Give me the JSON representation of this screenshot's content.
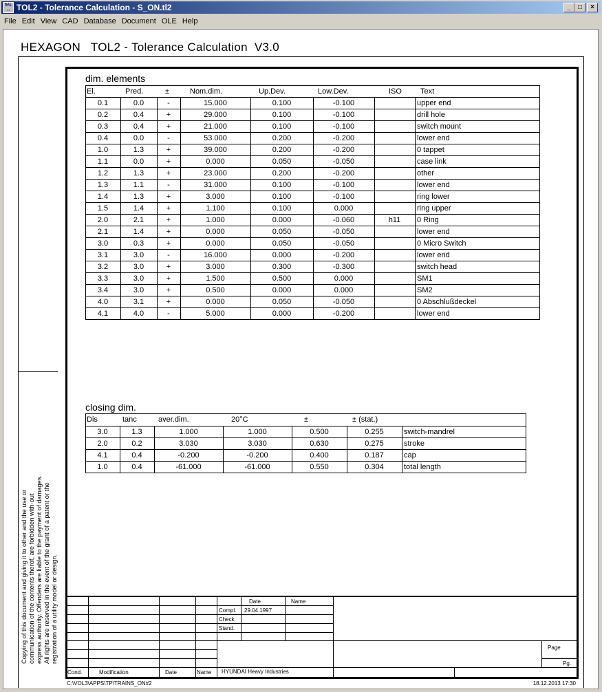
{
  "window": {
    "title": "TOL2 - Tolerance Calculation  - S_ON.tl2",
    "icon": "app-icon",
    "controls": [
      "minimize",
      "maximize",
      "close"
    ]
  },
  "menu": [
    "File",
    "Edit",
    "View",
    "CAD",
    "Database",
    "Document",
    "OLE",
    "Help"
  ],
  "document": {
    "heading": "HEXAGON   TOL2 - Tolerance Calculation  V3.0",
    "legal_text": "Copying of this document and giving it to other and the use or communication of the contents therof, are forbidden with-out express authority. Offenders are liable to the payment of damages. All rights are reserved in the event of the grant of a patent or the registration of a utility model or design."
  },
  "dim_elements": {
    "title": "dim. elements",
    "headers": [
      "El.",
      "Pred.",
      "±",
      "Nom.dim.",
      "Up.Dev.",
      "Low.Dev.",
      "ISO",
      "Text"
    ],
    "rows": [
      [
        "0.1",
        "0.0",
        "-",
        "15.000",
        "0.100",
        "-0.100",
        "",
        "upper end"
      ],
      [
        "0.2",
        "0.4",
        "+",
        "29.000",
        "0.100",
        "-0.100",
        "",
        "drill hole"
      ],
      [
        "0.3",
        "0.4",
        "+",
        "21.000",
        "0.100",
        "-0.100",
        "",
        "switch mount"
      ],
      [
        "0.4",
        "0.0",
        "-",
        "53.000",
        "0.200",
        "-0.200",
        "",
        "lower end"
      ],
      [
        "1.0",
        "1.3",
        "+",
        "39.000",
        "0.200",
        "-0.200",
        "",
        "0 tappet"
      ],
      [
        "1.1",
        "0.0",
        "+",
        "0.000",
        "0.050",
        "-0.050",
        "",
        "case link"
      ],
      [
        "1.2",
        "1.3",
        "+",
        "23.000",
        "0.200",
        "-0.200",
        "",
        "other"
      ],
      [
        "1.3",
        "1.1",
        "-",
        "31.000",
        "0.100",
        "-0.100",
        "",
        "lower end"
      ],
      [
        "1.4",
        "1.3",
        "+",
        "3.000",
        "0.100",
        "-0.100",
        "",
        "ring lower"
      ],
      [
        "1.5",
        "1.4",
        "+",
        "1.100",
        "0.100",
        "0.000",
        "",
        "ring upper"
      ],
      [
        "2.0",
        "2.1",
        "+",
        "1.000",
        "0.000",
        "-0.060",
        "h11",
        "0 Ring"
      ],
      [
        "2.1",
        "1.4",
        "+",
        "0.000",
        "0.050",
        "-0.050",
        "",
        "lower end"
      ],
      [
        "3.0",
        "0.3",
        "+",
        "0.000",
        "0.050",
        "-0.050",
        "",
        "0 Micro Switch"
      ],
      [
        "3.1",
        "3.0",
        "-",
        "16.000",
        "0.000",
        "-0.200",
        "",
        "lower end"
      ],
      [
        "3.2",
        "3.0",
        "+",
        "3.000",
        "0.300",
        "-0.300",
        "",
        "switch head"
      ],
      [
        "3.3",
        "3.0",
        "+",
        "1.500",
        "0.500",
        "0.000",
        "",
        "SM1"
      ],
      [
        "3.4",
        "3.0",
        "+",
        "0.500",
        "0.000",
        "0.000",
        "",
        "SM2"
      ],
      [
        "4.0",
        "3.1",
        "+",
        "0.000",
        "0.050",
        "-0.050",
        "",
        "0 Abschlußdeckel"
      ],
      [
        "4.1",
        "4.0",
        "-",
        "5.000",
        "0.000",
        "-0.200",
        "",
        "lower end"
      ]
    ]
  },
  "closing_dim": {
    "title": "closing dim.",
    "headers": [
      "Dis",
      "tanc",
      "aver.dim.",
      "20°C",
      "±",
      "±  (stat.)",
      ""
    ],
    "rows": [
      [
        "3.0",
        "1.3",
        "1.000",
        "1.000",
        "0.500",
        "0.255",
        "switch-mandrel"
      ],
      [
        "2.0",
        "0.2",
        "3.030",
        "3.030",
        "0.630",
        "0.275",
        "stroke"
      ],
      [
        "4.1",
        "0.4",
        "-0.200",
        "-0.200",
        "0.400",
        "0.187",
        "cap"
      ],
      [
        "1.0",
        "0.4",
        "-61.000",
        "-61.000",
        "0.550",
        "0.304",
        "total length"
      ]
    ]
  },
  "title_block": {
    "date_label": "Date",
    "name_label": "Name",
    "compl_label": "Compl.",
    "compl_date": "29.04.1997",
    "check_label": "Check",
    "stand_label": "Stand.",
    "cond_label": "Cond.",
    "modification_label": "Modification",
    "mod_date_label": "Date",
    "mod_name_label": "Name",
    "company": "HYUNDAI Heavy Industries",
    "page_label": "Page",
    "pg_label": "Pg."
  },
  "footer": {
    "path": "C:\\VOL3\\APPS\\TP\\TRAINS_ON#2",
    "timestamp": "18.12.2013 17:30"
  }
}
